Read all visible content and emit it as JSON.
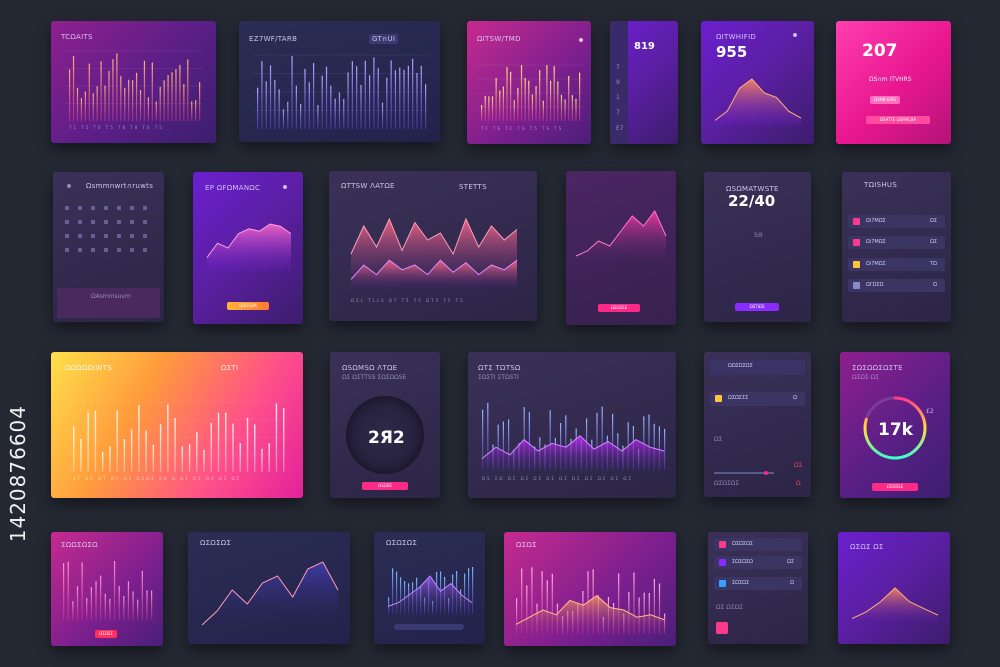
{
  "side_text": "1420876604",
  "colors": {
    "background": "#242833",
    "pink": "#ff2a88",
    "violet": "#8a2cff",
    "orange": "#ffb43a"
  },
  "cards": {
    "c1": {
      "title": "TCΩAITS",
      "ticks": "T1 T5 T0 T5 T8 T8 T0 T5"
    },
    "c2": {
      "title": "EZ7WF/TARB",
      "badge": "GT∩UI"
    },
    "c3": {
      "title": "ΩITSW/TMD",
      "ticks": "TF TS TC TS T5 TS TS"
    },
    "c4": {
      "value": "819",
      "rows": [
        "7",
        "9",
        "1",
        "7",
        "E7"
      ]
    },
    "c5": {
      "title": "ΩITWHIFID",
      "value": "955"
    },
    "c6": {
      "value": "207",
      "line1": "ΩS∩m   ITVHRS",
      "button1": "ΩANB EIRS",
      "button2": "ΩSATTE ΩSMALBA"
    },
    "c7": {
      "title": "Ωsmmnwrt∩ruwts",
      "rows": [
        "Ω",
        "C",
        "Ω"
      ],
      "footer": "ΩAsmmsuvm"
    },
    "c8": {
      "title": "EP ΩFΩMANΩC",
      "button": "ΩSΩSSM"
    },
    "c9": {
      "title": "ΩTTSW ΛATΩE",
      "badge": "STETTS",
      "ticks": "ΩSL TLLS ΩT T5 T5 ΩT5 T5 T5",
      "yticks": [
        "75%",
        "75%",
        "45%",
        "25%",
        "0"
      ]
    },
    "c10": {
      "button": "ΩSΩSSE"
    },
    "c11": {
      "title": "ΩSΩMATWSTE",
      "value": "22/40",
      "sub": "5Θ",
      "button": "ΩSTIΩS"
    },
    "c12": {
      "title": "TΩISHUS",
      "rows": [
        {
          "label": "Ωi7MΩΣ",
          "value": "ΩΣ"
        },
        {
          "label": "Ωi7MΩΣ",
          "value": "ΩΣ"
        },
        {
          "label": "Ωi7MΩΣ",
          "value": "TΩ"
        },
        {
          "label": "ΩΓΩΣΩ",
          "value": "Ω"
        }
      ]
    },
    "c13": {
      "title": "ΩΩΩΩΩIWTS",
      "badge": "ΩΣTI",
      "ticks": "ΣT ΩΣ ΩT ΩΣ ΩΣ ΩΣΩΣ ΣΩ Ω ΩΣ ΩΣ ΩΣ ΩΣ ΩΣ",
      "yticks": [
        "20",
        "15",
        "10",
        "0"
      ]
    },
    "c14": {
      "title": "ΩSΩMSΩ ΛTΩE",
      "sub": "ΩΣ ΩΣTTSS  ΣΩΣΩΩSE",
      "value": "2Я2",
      "button": "ΩSΩSE"
    },
    "c15": {
      "title": "ΩTΣ TΩTSΩ",
      "sub": "ΣΩΣTI  ΣTΩSTI",
      "ticks": "ΩS ΣΩ ΩΣ ΩΣ ΩΣ ΩΣ ΩΣ ΩΣ ΩΣ ΩΣ ΩΣ ΩΣ",
      "yticks": [
        "80",
        "40",
        "15",
        "0"
      ]
    },
    "c16": {
      "title": "ΩΩΣΩΣΩΣ",
      "rows": [
        "ΩΣΩΣΣΣ",
        "ΩΣ",
        "ΩΣΩΣΩΣ"
      ],
      "values": [
        "Ω",
        "ΩΣ",
        "Ω"
      ]
    },
    "c17": {
      "title": "ΣΩΣΩΩΣΩΣTE",
      "sub": "ΩΣΩΣ ΩΣ",
      "value": "17k",
      "badge": "£2",
      "button": "ΩΣΩSSE"
    },
    "c18": {
      "title": "ΣΩΩΣΩΣΩ",
      "button": "ΩΣΩΣΣ"
    },
    "c19": {
      "title": "ΩΣΩΣΩΣ"
    },
    "c20": {
      "title": "ΩΣΩΣΩΣ"
    },
    "c21": {
      "title": "ΩΣΩΣ"
    },
    "c22": {
      "rows": [
        "ΩΣΩΣΩΣ",
        "ΣΩΣΩΣΩ",
        "ΣΩΣΩΣ"
      ],
      "values": [
        "Ω",
        "ΩΣ",
        "Ω"
      ],
      "footer": "ΩΣ ΩΣΩΣ"
    },
    "c23": {
      "title": "ΩΣΩΣ ΩΣ"
    }
  }
}
